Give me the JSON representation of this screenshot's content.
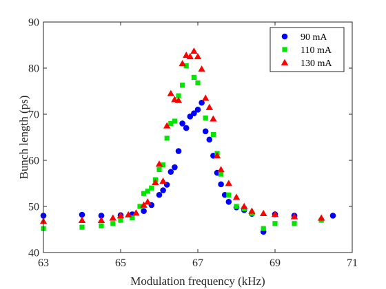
{
  "chart_data": {
    "type": "scatter",
    "title": "",
    "xlabel": "Modulation frequency (kHz)",
    "ylabel": "Bunch length (ps)",
    "xlim": [
      63,
      71
    ],
    "ylim": [
      40,
      90
    ],
    "xticks": [
      63,
      65,
      67,
      69,
      71
    ],
    "yticks": [
      40,
      50,
      60,
      70,
      80,
      90
    ],
    "grid": false,
    "legend_position": "top-right",
    "series": [
      {
        "name": "90 mA",
        "marker": "circle",
        "color": "#0000ff",
        "x": [
          63,
          64,
          64.5,
          65,
          65.3,
          65.6,
          65.8,
          66,
          66.1,
          66.2,
          66.3,
          66.4,
          66.5,
          66.6,
          66.7,
          66.8,
          66.9,
          67,
          67.1,
          67.2,
          67.3,
          67.4,
          67.5,
          67.6,
          67.7,
          67.8,
          68,
          68.2,
          68.4,
          68.7,
          69,
          69.5,
          70.5
        ],
        "y": [
          48,
          48.2,
          48,
          48.1,
          48.3,
          49,
          50.3,
          52.5,
          53.5,
          54.7,
          57.5,
          58.5,
          62,
          68,
          67,
          69.5,
          70.2,
          71,
          72.5,
          66.3,
          64.5,
          61,
          57.3,
          54.8,
          52.5,
          51,
          49.8,
          49.2,
          48.4,
          44.5,
          48.3,
          48,
          48
        ]
      },
      {
        "name": "110 mA",
        "marker": "square",
        "color": "#00e600",
        "x": [
          63,
          64,
          64.5,
          64.8,
          65,
          65.3,
          65.5,
          65.6,
          65.7,
          65.8,
          65.9,
          66,
          66.1,
          66.2,
          66.3,
          66.4,
          66.5,
          66.6,
          66.7,
          66.9,
          67,
          67.2,
          67.4,
          67.5,
          67.6,
          67.8,
          68,
          68.2,
          68.4,
          68.7,
          69,
          69.5,
          70.2
        ],
        "y": [
          45.2,
          45.5,
          45.8,
          46.3,
          47,
          47.5,
          50,
          52.8,
          53.3,
          54,
          55.8,
          58,
          59,
          64.8,
          68,
          68.5,
          74,
          76.3,
          80.5,
          78,
          76.8,
          69.2,
          65.6,
          61.5,
          57,
          52.5,
          50,
          49.5,
          48.5,
          45.2,
          46.3,
          46.3,
          47
        ]
      },
      {
        "name": "130 mA",
        "marker": "triangle",
        "color": "#ff0000",
        "x": [
          63,
          64,
          64.5,
          64.8,
          65,
          65.2,
          65.4,
          65.6,
          65.7,
          65.9,
          66,
          66.1,
          66.2,
          66.3,
          66.4,
          66.5,
          66.6,
          66.7,
          66.8,
          66.9,
          67,
          67.1,
          67.2,
          67.3,
          67.4,
          67.5,
          67.6,
          67.8,
          68,
          68.2,
          68.4,
          68.7,
          69,
          69.5,
          70.2
        ],
        "y": [
          46.8,
          47,
          47,
          47.5,
          48,
          48.2,
          48.6,
          50.3,
          51,
          55.2,
          59.2,
          55.5,
          67.5,
          74.5,
          73.2,
          73,
          81,
          82.8,
          82.5,
          83.7,
          82.5,
          79.8,
          73.5,
          71.5,
          69,
          61,
          58,
          55,
          52,
          50,
          49,
          48.5,
          48.3,
          47.8,
          47.5
        ]
      }
    ]
  }
}
